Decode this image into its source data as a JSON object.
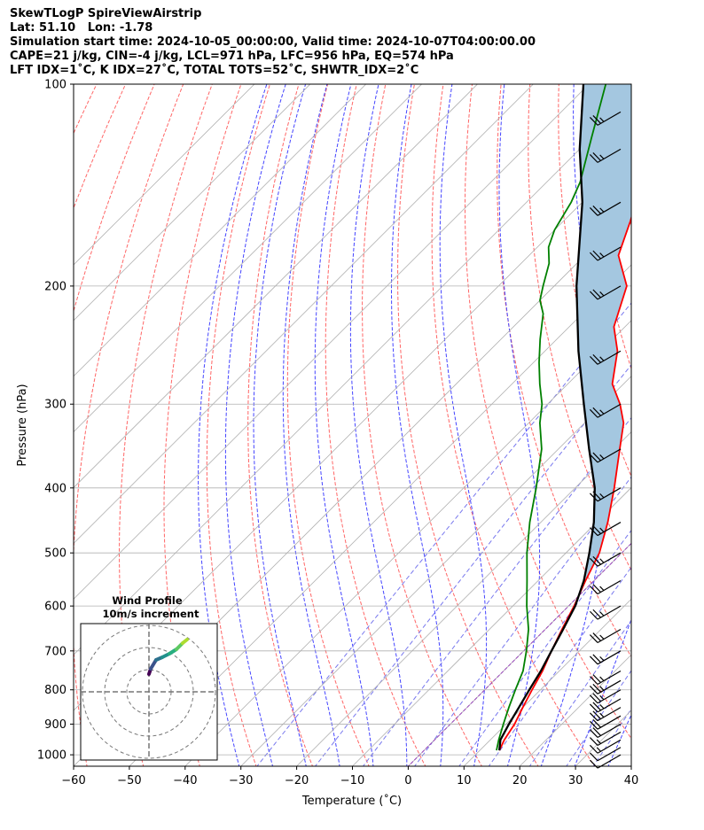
{
  "title_lines": [
    "SkewTLogP SpireViewAirstrip",
    "Lat: 51.10   Lon: -1.78",
    "Simulation start time: 2024-10-05_00:00:00, Valid time: 2024-10-07T04:00:00.00",
    "CAPE=21 j/kg, CIN=-4 j/kg, LCL=971 hPa, LFC=956 hPa, EQ=574 hPa",
    "LFT IDX=1˚C, K IDX=27˚C, TOTAL TOTS=52˚C, SHWTR_IDX=2˚C"
  ],
  "colors": {
    "temperature": "#ff0000",
    "dewpoint": "#008000",
    "parcel": "#000000",
    "cape_fill": "#a4c7e0",
    "dry_adiabat": "#ff6666",
    "moist_adiabat": "#4444ff",
    "mixing_ratio": "#7777ee",
    "freezing": "#9944bb",
    "isotherm": "#b0b0b0"
  },
  "chart_data": {
    "type": "skewt",
    "xlabel": "Temperature (˚C)",
    "ylabel": "Pressure (hPa)",
    "xlim": [
      -60,
      40
    ],
    "ylim": [
      1040,
      100
    ],
    "y_scale": "log",
    "x_ticks": [
      -60,
      -50,
      -40,
      -30,
      -20,
      -10,
      0,
      10,
      20,
      30,
      40
    ],
    "y_ticks": [
      1000,
      900,
      800,
      700,
      600,
      500,
      400,
      300,
      200,
      100
    ],
    "grid": true,
    "series": [
      {
        "key": "temperature",
        "points": [
          [
            985,
            13.5
          ],
          [
            950,
            12.5
          ],
          [
            900,
            11.5
          ],
          [
            850,
            10
          ],
          [
            800,
            8.5
          ],
          [
            750,
            7
          ],
          [
            700,
            5
          ],
          [
            650,
            3
          ],
          [
            600,
            1
          ],
          [
            550,
            -1.5
          ],
          [
            500,
            -4
          ],
          [
            450,
            -8
          ],
          [
            400,
            -13
          ],
          [
            350,
            -19
          ],
          [
            320,
            -23
          ],
          [
            300,
            -27
          ],
          [
            280,
            -32
          ],
          [
            250,
            -37
          ],
          [
            230,
            -42
          ],
          [
            200,
            -47
          ],
          [
            180,
            -54
          ],
          [
            160,
            -58
          ],
          [
            140,
            -63
          ],
          [
            120,
            -69
          ],
          [
            100,
            -74
          ]
        ]
      },
      {
        "key": "dewpoint",
        "points": [
          [
            985,
            13
          ],
          [
            950,
            11.5
          ],
          [
            900,
            9.5
          ],
          [
            850,
            7.5
          ],
          [
            800,
            5.5
          ],
          [
            750,
            3.5
          ],
          [
            700,
            0.5
          ],
          [
            650,
            -3
          ],
          [
            600,
            -7.5
          ],
          [
            550,
            -12
          ],
          [
            500,
            -17
          ],
          [
            450,
            -22
          ],
          [
            400,
            -27
          ],
          [
            350,
            -33
          ],
          [
            320,
            -38
          ],
          [
            300,
            -41
          ],
          [
            280,
            -45
          ],
          [
            260,
            -49
          ],
          [
            240,
            -53
          ],
          [
            220,
            -57
          ],
          [
            210,
            -60
          ],
          [
            200,
            -62
          ],
          [
            185,
            -65
          ],
          [
            175,
            -68
          ],
          [
            165,
            -70
          ],
          [
            150,
            -72
          ],
          [
            140,
            -74
          ],
          [
            120,
            -80
          ],
          [
            100,
            -87
          ]
        ]
      },
      {
        "key": "parcel",
        "points": [
          [
            985,
            13.5
          ],
          [
            950,
            11.8
          ],
          [
            900,
            10.5
          ],
          [
            850,
            9.3
          ],
          [
            800,
            8
          ],
          [
            750,
            6.7
          ],
          [
            700,
            5
          ],
          [
            650,
            3.2
          ],
          [
            600,
            1.2
          ],
          [
            550,
            -1.8
          ],
          [
            500,
            -5.8
          ],
          [
            450,
            -10.5
          ],
          [
            400,
            -16.5
          ],
          [
            350,
            -24.5
          ],
          [
            300,
            -33.5
          ],
          [
            250,
            -44
          ],
          [
            200,
            -56
          ],
          [
            150,
            -70
          ],
          [
            125,
            -80
          ],
          [
            100,
            -91
          ]
        ]
      }
    ],
    "cape_shading": {
      "between": [
        "temperature",
        "parcel"
      ],
      "from_hPa": 574,
      "to_hPa": 100
    },
    "wind_barbs": {
      "pressures": [
        1000,
        975,
        950,
        925,
        900,
        875,
        850,
        825,
        800,
        775,
        750,
        700,
        650,
        600,
        550,
        500,
        450,
        400,
        350,
        300,
        250,
        200,
        175,
        150,
        125,
        110
      ],
      "direction_deg": 240,
      "speed_kt": [
        10,
        12,
        15,
        17,
        20,
        22,
        25,
        25,
        25,
        25,
        25,
        25,
        25,
        25,
        25,
        25,
        25,
        25,
        25,
        25,
        25,
        25,
        25,
        25,
        25,
        25
      ]
    },
    "inset": {
      "title": "Wind Profile",
      "subtitle": "10m/s increment",
      "rings": [
        1,
        2,
        3
      ],
      "hodograph": [
        [
          0,
          2
        ],
        [
          0.2,
          2.6
        ],
        [
          0.8,
          3.6
        ],
        [
          1.5,
          3.9
        ],
        [
          2.3,
          4.3
        ],
        [
          3.1,
          4.8
        ],
        [
          3.8,
          5.5
        ],
        [
          4.3,
          5.9
        ]
      ]
    }
  }
}
